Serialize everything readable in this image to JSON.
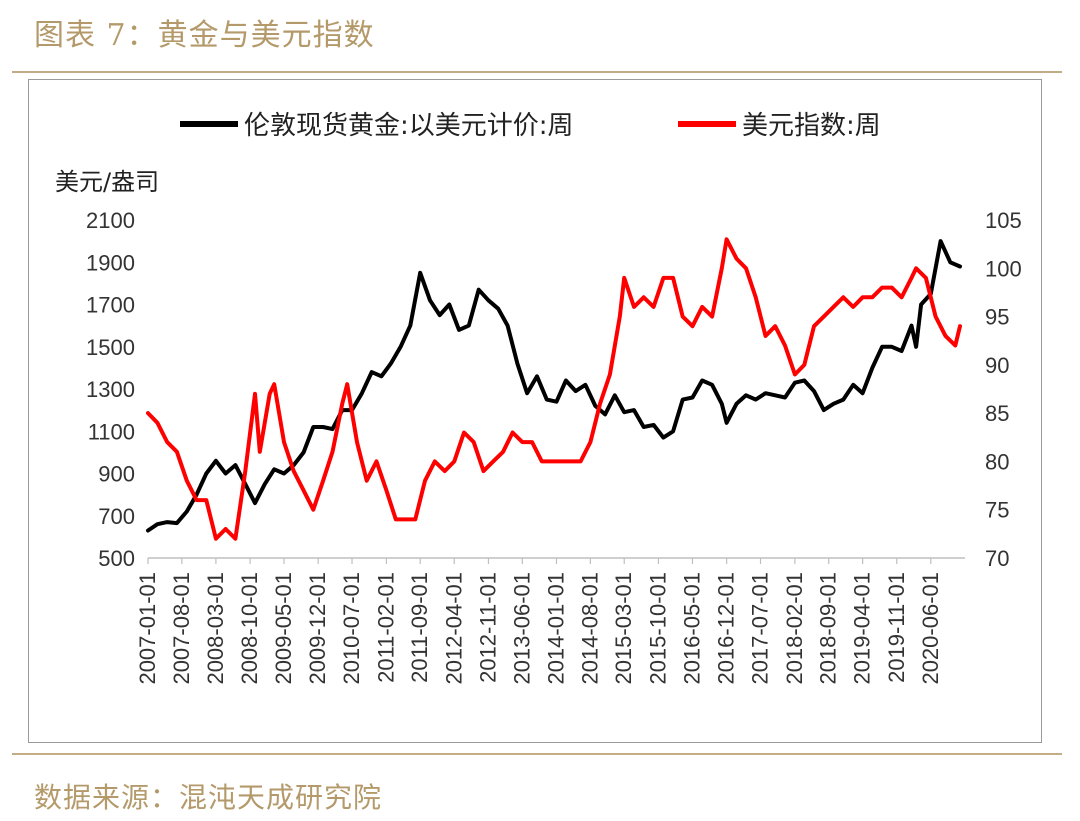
{
  "figure": {
    "title": "图表 7：黄金与美元指数",
    "source": "数据来源：混沌天成研究院"
  },
  "chart_data": {
    "type": "line",
    "left_axis_label": "美元/盎司",
    "left_axis": {
      "min": 500,
      "max": 2100,
      "ticks": [
        2100,
        1900,
        1700,
        1500,
        1300,
        1100,
        900,
        700,
        500
      ]
    },
    "right_axis": {
      "min": 70,
      "max": 105,
      "ticks": [
        105,
        100,
        95,
        90,
        85,
        80,
        75,
        70
      ]
    },
    "x_axis": {
      "start": "2007-01-01",
      "end": "2021-01-01",
      "tick_labels": [
        "2007-01-01",
        "2007-08-01",
        "2008-03-01",
        "2008-10-01",
        "2009-05-01",
        "2009-12-01",
        "2010-07-01",
        "2011-02-01",
        "2011-09-01",
        "2012-04-01",
        "2012-11-01",
        "2013-06-01",
        "2014-01-01",
        "2014-08-01",
        "2015-03-01",
        "2015-10-01",
        "2016-05-01",
        "2016-12-01",
        "2017-07-01",
        "2018-02-01",
        "2018-09-01",
        "2019-04-01",
        "2019-11-01",
        "2020-06-01"
      ]
    },
    "legend_position": "top",
    "grid": false,
    "series": [
      {
        "name": "伦敦现货黄金:以美元计价:周",
        "axis": "left",
        "color": "#000000",
        "points": [
          [
            "2007-01-01",
            630
          ],
          [
            "2007-03-01",
            660
          ],
          [
            "2007-05-01",
            670
          ],
          [
            "2007-07-01",
            665
          ],
          [
            "2007-09-01",
            720
          ],
          [
            "2007-11-01",
            800
          ],
          [
            "2008-01-01",
            900
          ],
          [
            "2008-03-01",
            960
          ],
          [
            "2008-05-01",
            900
          ],
          [
            "2008-07-01",
            940
          ],
          [
            "2008-09-01",
            850
          ],
          [
            "2008-11-01",
            760
          ],
          [
            "2009-01-01",
            850
          ],
          [
            "2009-03-01",
            920
          ],
          [
            "2009-05-01",
            900
          ],
          [
            "2009-07-01",
            940
          ],
          [
            "2009-09-01",
            1000
          ],
          [
            "2009-11-01",
            1120
          ],
          [
            "2010-01-01",
            1120
          ],
          [
            "2010-03-01",
            1110
          ],
          [
            "2010-05-01",
            1200
          ],
          [
            "2010-07-01",
            1200
          ],
          [
            "2010-09-01",
            1280
          ],
          [
            "2010-11-01",
            1380
          ],
          [
            "2011-01-01",
            1360
          ],
          [
            "2011-03-01",
            1420
          ],
          [
            "2011-05-01",
            1500
          ],
          [
            "2011-07-01",
            1600
          ],
          [
            "2011-09-01",
            1850
          ],
          [
            "2011-11-01",
            1720
          ],
          [
            "2012-01-01",
            1650
          ],
          [
            "2012-03-01",
            1700
          ],
          [
            "2012-05-01",
            1580
          ],
          [
            "2012-07-01",
            1600
          ],
          [
            "2012-09-01",
            1770
          ],
          [
            "2012-11-01",
            1720
          ],
          [
            "2013-01-01",
            1680
          ],
          [
            "2013-03-01",
            1600
          ],
          [
            "2013-05-01",
            1420
          ],
          [
            "2013-07-01",
            1280
          ],
          [
            "2013-09-01",
            1360
          ],
          [
            "2013-11-01",
            1250
          ],
          [
            "2014-01-01",
            1240
          ],
          [
            "2014-03-01",
            1340
          ],
          [
            "2014-05-01",
            1290
          ],
          [
            "2014-07-01",
            1320
          ],
          [
            "2014-09-01",
            1220
          ],
          [
            "2014-11-01",
            1180
          ],
          [
            "2015-01-01",
            1270
          ],
          [
            "2015-03-01",
            1190
          ],
          [
            "2015-05-01",
            1200
          ],
          [
            "2015-07-01",
            1120
          ],
          [
            "2015-09-01",
            1130
          ],
          [
            "2015-11-01",
            1070
          ],
          [
            "2016-01-01",
            1100
          ],
          [
            "2016-03-01",
            1250
          ],
          [
            "2016-05-01",
            1260
          ],
          [
            "2016-07-01",
            1340
          ],
          [
            "2016-09-01",
            1320
          ],
          [
            "2016-11-01",
            1230
          ],
          [
            "2016-12-01",
            1140
          ],
          [
            "2017-02-01",
            1230
          ],
          [
            "2017-04-01",
            1270
          ],
          [
            "2017-06-01",
            1250
          ],
          [
            "2017-08-01",
            1280
          ],
          [
            "2017-10-01",
            1270
          ],
          [
            "2017-12-01",
            1260
          ],
          [
            "2018-02-01",
            1330
          ],
          [
            "2018-04-01",
            1340
          ],
          [
            "2018-06-01",
            1290
          ],
          [
            "2018-08-01",
            1200
          ],
          [
            "2018-10-01",
            1230
          ],
          [
            "2018-12-01",
            1250
          ],
          [
            "2019-02-01",
            1320
          ],
          [
            "2019-04-01",
            1280
          ],
          [
            "2019-06-01",
            1400
          ],
          [
            "2019-08-01",
            1500
          ],
          [
            "2019-10-01",
            1500
          ],
          [
            "2019-12-01",
            1480
          ],
          [
            "2020-02-01",
            1600
          ],
          [
            "2020-03-01",
            1500
          ],
          [
            "2020-04-01",
            1700
          ],
          [
            "2020-06-01",
            1750
          ],
          [
            "2020-08-01",
            2000
          ],
          [
            "2020-10-01",
            1900
          ],
          [
            "2020-12-01",
            1880
          ]
        ]
      },
      {
        "name": "美元指数:周",
        "axis": "right",
        "color": "#ff0000",
        "points": [
          [
            "2007-01-01",
            85
          ],
          [
            "2007-03-01",
            84
          ],
          [
            "2007-05-01",
            82
          ],
          [
            "2007-07-01",
            81
          ],
          [
            "2007-09-01",
            78
          ],
          [
            "2007-11-01",
            76
          ],
          [
            "2008-01-01",
            76
          ],
          [
            "2008-03-01",
            72
          ],
          [
            "2008-05-01",
            73
          ],
          [
            "2008-07-01",
            72
          ],
          [
            "2008-09-01",
            79
          ],
          [
            "2008-11-01",
            87
          ],
          [
            "2008-12-01",
            81
          ],
          [
            "2009-02-01",
            87
          ],
          [
            "2009-03-01",
            88
          ],
          [
            "2009-05-01",
            82
          ],
          [
            "2009-07-01",
            79
          ],
          [
            "2009-09-01",
            77
          ],
          [
            "2009-11-01",
            75
          ],
          [
            "2010-01-01",
            78
          ],
          [
            "2010-03-01",
            81
          ],
          [
            "2010-05-01",
            86
          ],
          [
            "2010-06-01",
            88
          ],
          [
            "2010-08-01",
            82
          ],
          [
            "2010-10-01",
            78
          ],
          [
            "2010-12-01",
            80
          ],
          [
            "2011-02-01",
            77
          ],
          [
            "2011-04-01",
            74
          ],
          [
            "2011-06-01",
            74
          ],
          [
            "2011-08-01",
            74
          ],
          [
            "2011-10-01",
            78
          ],
          [
            "2011-12-01",
            80
          ],
          [
            "2012-02-01",
            79
          ],
          [
            "2012-04-01",
            80
          ],
          [
            "2012-06-01",
            83
          ],
          [
            "2012-08-01",
            82
          ],
          [
            "2012-10-01",
            79
          ],
          [
            "2012-12-01",
            80
          ],
          [
            "2013-02-01",
            81
          ],
          [
            "2013-04-01",
            83
          ],
          [
            "2013-06-01",
            82
          ],
          [
            "2013-08-01",
            82
          ],
          [
            "2013-10-01",
            80
          ],
          [
            "2013-12-01",
            80
          ],
          [
            "2014-02-01",
            80
          ],
          [
            "2014-04-01",
            80
          ],
          [
            "2014-06-01",
            80
          ],
          [
            "2014-08-01",
            82
          ],
          [
            "2014-10-01",
            86
          ],
          [
            "2014-12-01",
            89
          ],
          [
            "2015-02-01",
            95
          ],
          [
            "2015-03-01",
            99
          ],
          [
            "2015-05-01",
            96
          ],
          [
            "2015-07-01",
            97
          ],
          [
            "2015-09-01",
            96
          ],
          [
            "2015-11-01",
            99
          ],
          [
            "2016-01-01",
            99
          ],
          [
            "2016-03-01",
            95
          ],
          [
            "2016-05-01",
            94
          ],
          [
            "2016-07-01",
            96
          ],
          [
            "2016-09-01",
            95
          ],
          [
            "2016-11-01",
            100
          ],
          [
            "2016-12-01",
            103
          ],
          [
            "2017-02-01",
            101
          ],
          [
            "2017-04-01",
            100
          ],
          [
            "2017-06-01",
            97
          ],
          [
            "2017-08-01",
            93
          ],
          [
            "2017-10-01",
            94
          ],
          [
            "2017-12-01",
            92
          ],
          [
            "2018-02-01",
            89
          ],
          [
            "2018-04-01",
            90
          ],
          [
            "2018-06-01",
            94
          ],
          [
            "2018-08-01",
            95
          ],
          [
            "2018-10-01",
            96
          ],
          [
            "2018-12-01",
            97
          ],
          [
            "2019-02-01",
            96
          ],
          [
            "2019-04-01",
            97
          ],
          [
            "2019-06-01",
            97
          ],
          [
            "2019-08-01",
            98
          ],
          [
            "2019-10-01",
            98
          ],
          [
            "2019-12-01",
            97
          ],
          [
            "2020-02-01",
            99
          ],
          [
            "2020-03-01",
            100
          ],
          [
            "2020-05-01",
            99
          ],
          [
            "2020-07-01",
            95
          ],
          [
            "2020-09-01",
            93
          ],
          [
            "2020-11-01",
            92
          ],
          [
            "2020-12-01",
            94
          ]
        ]
      }
    ]
  }
}
